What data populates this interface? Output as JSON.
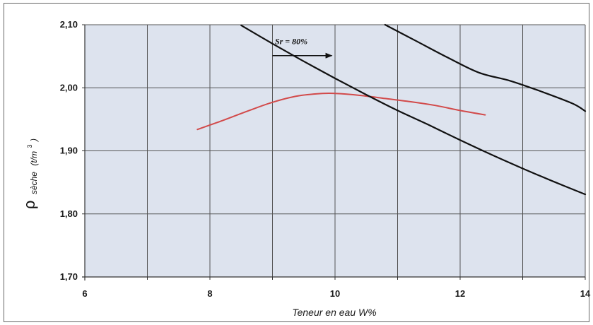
{
  "chart_data": {
    "type": "line",
    "title": "",
    "xlabel": "Teneur en eau W%",
    "ylabel": {
      "symbol": "ρ",
      "subscript": "sèche",
      "unit_open": "(t/m",
      "unit_exp": "3",
      "unit_close": ")"
    },
    "xlim": [
      6,
      14
    ],
    "ylim": [
      1.7,
      2.1
    ],
    "x_ticks": [
      6,
      8,
      10,
      12,
      14
    ],
    "x_tick_labels": [
      "6",
      "8",
      "10",
      "12",
      "14"
    ],
    "y_ticks": [
      1.7,
      1.8,
      1.9,
      2.0,
      2.1
    ],
    "y_tick_labels": [
      "1,70",
      "1,80",
      "1,90",
      "2,00",
      "2,10"
    ],
    "x_grid": [
      6,
      7,
      8,
      9,
      10,
      11,
      12,
      13,
      14
    ],
    "grid": true,
    "colors": {
      "plot_background": "#dde3ee",
      "grid": "#555555",
      "compaction_curve": "#d24a4a",
      "saturation_lines": "#111111",
      "axis_text": "#1a1a1a"
    },
    "series": [
      {
        "name": "",
        "role": "compaction",
        "color": "#d24a4a",
        "x": [
          7.8,
          8.2,
          8.6,
          9.0,
          9.4,
          9.8,
          10.0,
          10.4,
          10.8,
          11.2,
          11.6,
          12.0,
          12.4
        ],
        "y": [
          1.934,
          1.948,
          1.963,
          1.977,
          1.987,
          1.991,
          1.991,
          1.988,
          1.983,
          1.978,
          1.972,
          1.964,
          1.957
        ]
      },
      {
        "name": "",
        "role": "saturation",
        "color": "#111111",
        "x": [
          8.5,
          9.0,
          9.5,
          10.0,
          10.5,
          11.0,
          11.5,
          12.0,
          12.5,
          13.0,
          13.5,
          14.0
        ],
        "y": [
          2.099,
          2.07,
          2.042,
          2.015,
          1.989,
          1.964,
          1.941,
          1.917,
          1.894,
          1.872,
          1.851,
          1.831
        ]
      },
      {
        "name": "",
        "role": "saturation",
        "color": "#111111",
        "x": [
          10.8,
          11.3,
          11.8,
          12.3,
          12.8,
          13.3,
          13.8,
          14.0
        ],
        "y": [
          2.1,
          2.074,
          2.048,
          2.024,
          2.011,
          1.994,
          1.975,
          1.963
        ]
      }
    ],
    "annotations": [
      {
        "text": "Sr = 80%",
        "anchor": [
          9.3,
          2.069
        ],
        "arrow_from": [
          9.0,
          2.051
        ],
        "arrow_to": [
          9.95,
          2.051
        ]
      }
    ]
  }
}
